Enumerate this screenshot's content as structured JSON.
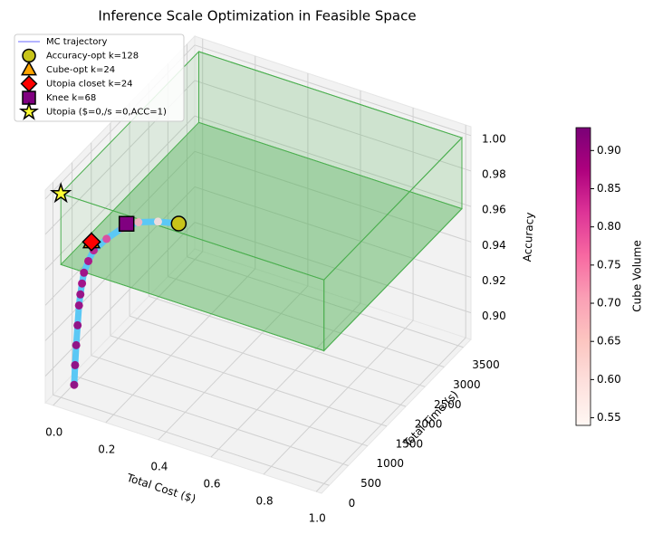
{
  "chart_data": {
    "type": "scatter3d",
    "title": "Inference Scale Optimization in Feasible Space",
    "xlabel": "Total Cost ($)",
    "ylabel": "Total Time (s)",
    "zlabel": "Accuracy",
    "xlim": [
      -0.03,
      1.02
    ],
    "ylim": [
      -200,
      3700
    ],
    "zlim": [
      0.885,
      1.005
    ],
    "xticks": [
      {
        "value": 0,
        "label": "0.0"
      },
      {
        "value": 0.2,
        "label": "0.2"
      },
      {
        "value": 0.4,
        "label": "0.4"
      },
      {
        "value": 0.6,
        "label": "0.6"
      },
      {
        "value": 0.8,
        "label": "0.8"
      },
      {
        "value": 1.0,
        "label": "1.0"
      }
    ],
    "yticks": [
      0,
      500,
      1000,
      1500,
      2000,
      2500,
      3000,
      3500
    ],
    "zticks": [
      {
        "value": 0.9,
        "label": "0.90"
      },
      {
        "value": 0.92,
        "label": "0.92"
      },
      {
        "value": 0.94,
        "label": "0.94"
      },
      {
        "value": 0.96,
        "label": "0.96"
      },
      {
        "value": 0.98,
        "label": "0.98"
      },
      {
        "value": 1.0,
        "label": "1.00"
      }
    ],
    "grid": true,
    "feasible_box": {
      "x": [
        0,
        1.0
      ],
      "y": [
        0,
        3600
      ],
      "z": [
        0.96,
        1.0
      ],
      "color": "#4caf50"
    },
    "series": [
      {
        "name": "MC trajectory",
        "color": "#5bc8f5",
        "legend_color": "#6a6aff",
        "x": [
          0.028,
          0.025,
          0.022,
          0.02,
          0.018,
          0.016,
          0.015,
          0.015,
          0.02,
          0.03,
          0.05,
          0.08,
          0.12,
          0.18,
          0.25
        ],
        "y": [
          156,
          200,
          250,
          300,
          350,
          400,
          450,
          500,
          580,
          650,
          850,
          1050,
          1200,
          1300,
          1360
        ],
        "z": [
          0.89,
          0.9,
          0.91,
          0.92,
          0.93,
          0.935,
          0.94,
          0.945,
          0.95,
          0.955,
          0.958,
          0.961,
          0.963,
          0.964,
          0.965
        ],
        "volume": [
          0.9,
          0.9,
          0.9,
          0.9,
          0.89,
          0.89,
          0.88,
          0.88,
          0.87,
          0.85,
          0.8,
          0.75,
          0.68,
          0.6,
          0.56
        ]
      }
    ],
    "markers": [
      {
        "name": "Accuracy-opt k=128",
        "shape": "circle",
        "color": "#c8c41a",
        "x": 0.25,
        "y": 1360,
        "z": 0.965
      },
      {
        "name": "Cube-opt k=24",
        "shape": "triangle",
        "color": "#ffa500",
        "x": 0.0,
        "y": 800,
        "z": 0.955
      },
      {
        "name": "Utopia closet k=24",
        "shape": "diamond",
        "color": "#ff0000",
        "x": 0.0,
        "y": 800,
        "z": 0.955
      },
      {
        "name": "Knee k=68",
        "shape": "square",
        "color": "#800080",
        "x": 0.085,
        "y": 1130,
        "z": 0.962
      },
      {
        "name": "Utopia ($=0,/s =0,ACC=1)",
        "shape": "star",
        "color": "#ffff33",
        "x": 0,
        "y": 0,
        "z": 1.0
      }
    ],
    "colorbar": {
      "label": "Cube Volume",
      "lim": [
        0.54,
        0.93
      ],
      "ticks": [
        0.55,
        {
          "value": 0.6,
          "label": "0.60"
        },
        0.65,
        {
          "value": 0.7,
          "label": "0.70"
        },
        0.75,
        {
          "value": 0.8,
          "label": "0.80"
        },
        0.85,
        {
          "value": 0.9,
          "label": "0.90"
        }
      ],
      "colormap": [
        "#fff7f3",
        "#fde0dd",
        "#fcc5c0",
        "#fa9fb5",
        "#f768a1",
        "#dd3497",
        "#ae017e",
        "#7a0177"
      ]
    }
  }
}
